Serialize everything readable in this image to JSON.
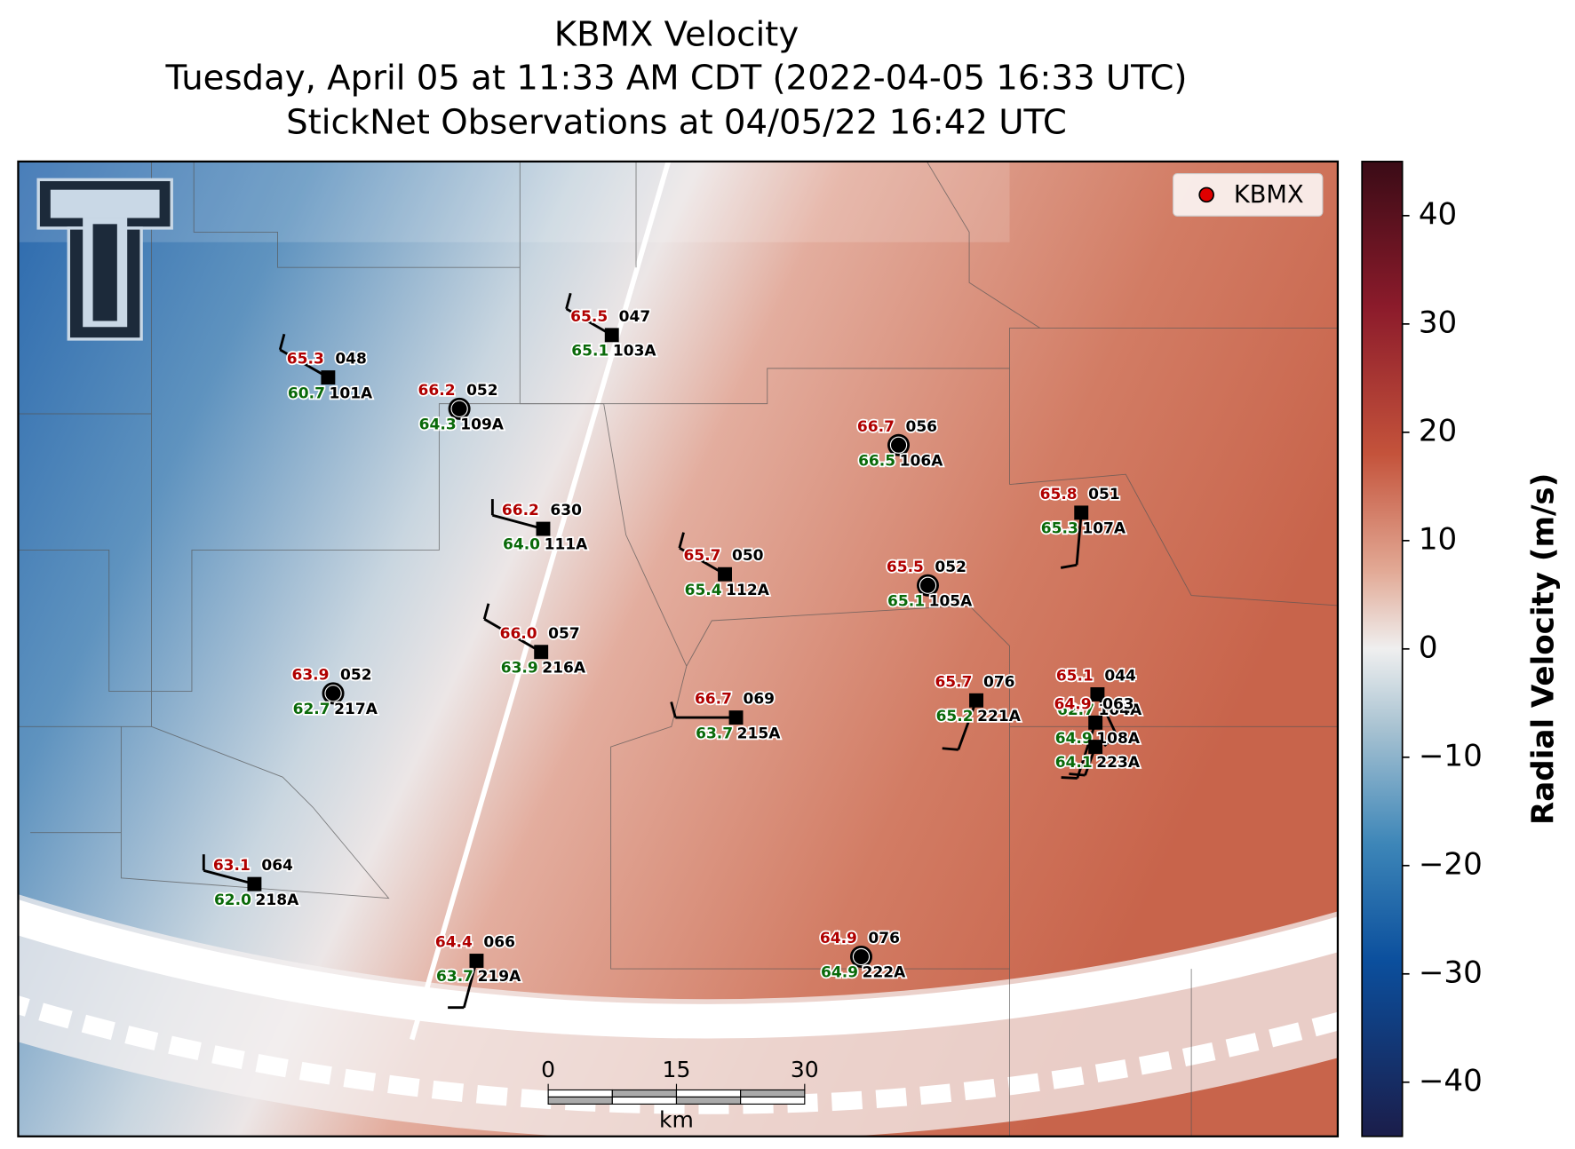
{
  "header": {
    "title_lines": [
      "KBMX Velocity",
      "Tuesday, April 05 at 11:33 AM CDT (2022-04-05 16:33 UTC)",
      "StickNet Observations at 04/05/22 16:42 UTC"
    ]
  },
  "legend": {
    "label": "KBMX"
  },
  "stations": [
    {
      "temperature": "65.3",
      "dewpoint": "60.7",
      "pressure": "048",
      "id": "101A",
      "marker": "square"
    },
    {
      "temperature": "66.2",
      "dewpoint": "64.3",
      "pressure": "052",
      "id": "109A",
      "marker": "circle"
    },
    {
      "temperature": "65.5",
      "dewpoint": "65.1",
      "pressure": "047",
      "id": "103A",
      "marker": "square"
    },
    {
      "temperature": "66.7",
      "dewpoint": "66.5",
      "pressure": "056",
      "id": "106A",
      "marker": "circle"
    },
    {
      "temperature": "66.2",
      "dewpoint": "64.0",
      "pressure": "630",
      "id": "111A",
      "marker": "square"
    },
    {
      "temperature": "65.8",
      "dewpoint": "65.3",
      "pressure": "051",
      "id": "107A",
      "marker": "square"
    },
    {
      "temperature": "65.7",
      "dewpoint": "65.4",
      "pressure": "050",
      "id": "112A",
      "marker": "square"
    },
    {
      "temperature": "65.5",
      "dewpoint": "65.1",
      "pressure": "052",
      "id": "105A",
      "marker": "circle"
    },
    {
      "temperature": "66.0",
      "dewpoint": "63.9",
      "pressure": "057",
      "id": "216A",
      "marker": "square"
    },
    {
      "temperature": "63.9",
      "dewpoint": "62.7",
      "pressure": "052",
      "id": "217A",
      "marker": "circle"
    },
    {
      "temperature": "66.7",
      "dewpoint": "63.7",
      "pressure": "069",
      "id": "215A",
      "marker": "square"
    },
    {
      "temperature": "65.7",
      "dewpoint": "65.2",
      "pressure": "076",
      "id": "221A",
      "marker": "square"
    },
    {
      "temperature": "65.1",
      "dewpoint": "62.7",
      "pressure": "044",
      "id": "104A",
      "marker": "square"
    },
    {
      "temperature": "64.9",
      "dewpoint": "64.9",
      "pressure": "063",
      "id": "108A",
      "marker": "square"
    },
    {
      "dewpoint": "64.1",
      "id": "223A",
      "marker": "square"
    },
    {
      "temperature": "63.1",
      "dewpoint": "62.0",
      "pressure": "064",
      "id": "218A",
      "marker": "square"
    },
    {
      "temperature": "64.4",
      "dewpoint": "63.7",
      "pressure": "066",
      "id": "219A",
      "marker": "square"
    },
    {
      "temperature": "64.9",
      "dewpoint": "64.9",
      "pressure": "076",
      "id": "222A",
      "marker": "circle"
    }
  ],
  "colorbar": {
    "label": "Radial Velocity (m/s)",
    "lim": [
      -45,
      45
    ],
    "ticks": [
      40,
      30,
      20,
      10,
      0,
      {
        "value": -10,
        "label": "−10"
      },
      {
        "value": -20,
        "label": "−20"
      },
      {
        "value": -30,
        "label": "−30"
      },
      {
        "value": -40,
        "label": "−40"
      }
    ]
  },
  "scale_bar": {
    "ticks": [
      0,
      15,
      30
    ],
    "unit": "km"
  }
}
